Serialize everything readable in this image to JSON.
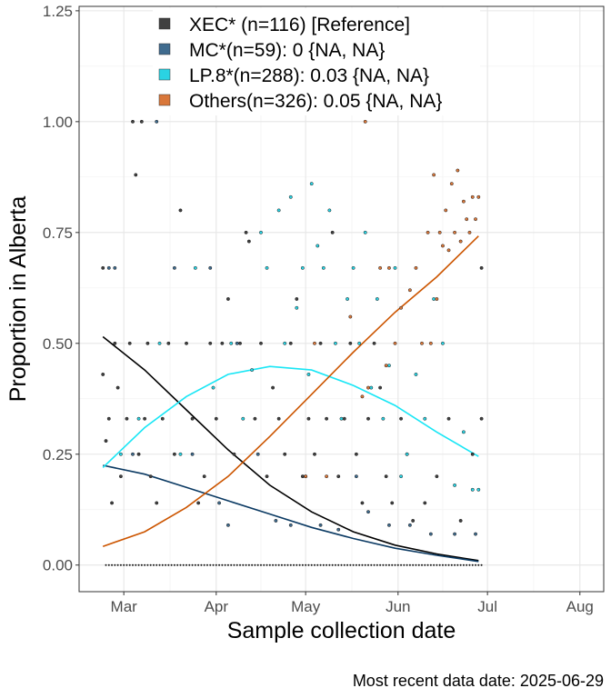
{
  "chart_data": {
    "type": "scatter",
    "xlabel": "Sample collection date",
    "ylabel": "Proportion in Alberta",
    "caption": "Most recent data date: 2025-06-29",
    "xlim": [
      "2025-02-14",
      "2025-08-09"
    ],
    "ylim": [
      -0.06,
      1.26
    ],
    "x_ticks": [
      {
        "date": "2025-03-01",
        "label": "Mar"
      },
      {
        "date": "2025-04-01",
        "label": "Apr"
      },
      {
        "date": "2025-05-01",
        "label": "May"
      },
      {
        "date": "2025-06-01",
        "label": "Jun"
      },
      {
        "date": "2025-07-01",
        "label": "Jul"
      },
      {
        "date": "2025-08-01",
        "label": "Aug"
      }
    ],
    "y_ticks": [
      {
        "value": 0,
        "label": "0.00"
      },
      {
        "value": 0.25,
        "label": "0.25"
      },
      {
        "value": 0.5,
        "label": "0.50"
      },
      {
        "value": 0.75,
        "label": "0.75"
      },
      {
        "value": 1.0,
        "label": "1.00"
      },
      {
        "value": 1.25,
        "label": "1.25"
      }
    ],
    "grid": true,
    "legend_position": "top",
    "series": [
      {
        "name": "XEC* (n=116)  [Reference]",
        "fill": "#404040",
        "line": "#000000",
        "fit": [
          [
            "2025-02-22",
            0.515
          ],
          [
            "2025-03-08",
            0.44
          ],
          [
            "2025-03-22",
            0.35
          ],
          [
            "2025-04-05",
            0.26
          ],
          [
            "2025-04-19",
            0.18
          ],
          [
            "2025-05-03",
            0.12
          ],
          [
            "2025-05-17",
            0.075
          ],
          [
            "2025-05-31",
            0.045
          ],
          [
            "2025-06-14",
            0.025
          ],
          [
            "2025-06-28",
            0.01
          ]
        ],
        "points": [
          [
            "2025-02-22",
            0.67
          ],
          [
            "2025-02-22",
            0.43
          ],
          [
            "2025-02-23",
            0.28
          ],
          [
            "2025-02-24",
            0.33
          ],
          [
            "2025-02-25",
            0.14
          ],
          [
            "2025-02-26",
            0.5
          ],
          [
            "2025-02-27",
            0.4
          ],
          [
            "2025-02-28",
            0.2
          ],
          [
            "2025-03-02",
            0.33
          ],
          [
            "2025-03-03",
            0.5
          ],
          [
            "2025-03-04",
            1.0
          ],
          [
            "2025-03-05",
            0.88
          ],
          [
            "2025-03-06",
            0.25
          ],
          [
            "2025-03-07",
            1.0
          ],
          [
            "2025-03-08",
            0.33
          ],
          [
            "2025-03-09",
            0.5
          ],
          [
            "2025-03-10",
            0.2
          ],
          [
            "2025-03-12",
            0.14
          ],
          [
            "2025-03-14",
            0.33
          ],
          [
            "2025-03-16",
            0.5
          ],
          [
            "2025-03-18",
            0.25
          ],
          [
            "2025-03-20",
            0.8
          ],
          [
            "2025-03-22",
            0.5
          ],
          [
            "2025-03-24",
            0.33
          ],
          [
            "2025-03-26",
            0.14
          ],
          [
            "2025-03-28",
            0.2
          ],
          [
            "2025-03-30",
            0.5
          ],
          [
            "2025-04-01",
            0.33
          ],
          [
            "2025-04-03",
            0.5
          ],
          [
            "2025-04-05",
            0.6
          ],
          [
            "2025-04-07",
            0.25
          ],
          [
            "2025-04-09",
            0.5
          ],
          [
            "2025-04-11",
            0.75
          ],
          [
            "2025-04-12",
            0.73
          ],
          [
            "2025-04-14",
            0.33
          ],
          [
            "2025-04-16",
            0.5
          ],
          [
            "2025-04-18",
            0.2
          ],
          [
            "2025-04-20",
            0.4
          ],
          [
            "2025-04-22",
            0.33
          ],
          [
            "2025-04-24",
            0.25
          ],
          [
            "2025-04-26",
            0.5
          ],
          [
            "2025-04-28",
            0.6
          ],
          [
            "2025-04-30",
            0.2
          ],
          [
            "2025-05-02",
            0.33
          ],
          [
            "2025-05-04",
            0.25
          ],
          [
            "2025-05-06",
            0.5
          ],
          [
            "2025-05-08",
            0.33
          ],
          [
            "2025-05-10",
            0.75
          ],
          [
            "2025-05-12",
            0.2
          ],
          [
            "2025-05-14",
            0.33
          ],
          [
            "2025-05-16",
            0.5
          ],
          [
            "2025-05-18",
            0.25
          ],
          [
            "2025-05-20",
            0.14
          ],
          [
            "2025-05-22",
            0.33
          ],
          [
            "2025-05-24",
            0.5
          ],
          [
            "2025-05-26",
            0.4
          ],
          [
            "2025-05-28",
            0.2
          ],
          [
            "2025-05-30",
            0.14
          ],
          [
            "2025-06-02",
            0.33
          ],
          [
            "2025-06-04",
            0.25
          ],
          [
            "2025-06-06",
            0.1
          ],
          [
            "2025-06-10",
            0.14
          ],
          [
            "2025-06-14",
            0.2
          ],
          [
            "2025-06-18",
            0.33
          ],
          [
            "2025-06-22",
            0.1
          ],
          [
            "2025-06-26",
            0.25
          ],
          [
            "2025-06-29",
            0.33
          ],
          [
            "2025-06-29",
            0.67
          ]
        ]
      },
      {
        "name": "MC*(n=59): 0 {NA, NA}",
        "fill": "#3f6b8e",
        "line": "#0b3a63",
        "fit": [
          [
            "2025-02-22",
            0.225
          ],
          [
            "2025-03-08",
            0.205
          ],
          [
            "2025-03-22",
            0.175
          ],
          [
            "2025-04-05",
            0.145
          ],
          [
            "2025-04-19",
            0.115
          ],
          [
            "2025-05-03",
            0.085
          ],
          [
            "2025-05-17",
            0.06
          ],
          [
            "2025-05-31",
            0.038
          ],
          [
            "2025-06-14",
            0.022
          ],
          [
            "2025-06-28",
            0.008
          ]
        ],
        "points": [
          [
            "2025-02-24",
            0.67
          ],
          [
            "2025-02-26",
            0.67
          ],
          [
            "2025-03-04",
            0.25
          ],
          [
            "2025-03-12",
            1.0
          ],
          [
            "2025-03-18",
            0.67
          ],
          [
            "2025-03-24",
            0.25
          ],
          [
            "2025-03-30",
            0.67
          ],
          [
            "2025-04-02",
            0.14
          ],
          [
            "2025-04-05",
            0.09
          ],
          [
            "2025-04-08",
            0.5
          ],
          [
            "2025-04-15",
            0.25
          ],
          [
            "2025-04-21",
            0.1
          ],
          [
            "2025-04-26",
            0.09
          ],
          [
            "2025-05-01",
            0.2
          ],
          [
            "2025-05-06",
            0.09
          ],
          [
            "2025-05-12",
            0.08
          ],
          [
            "2025-05-18",
            0.2
          ],
          [
            "2025-05-22",
            0.12
          ],
          [
            "2025-05-29",
            0.09
          ],
          [
            "2025-06-05",
            0.09
          ],
          [
            "2025-06-12",
            0.07
          ],
          [
            "2025-06-20",
            0.07
          ],
          [
            "2025-06-27",
            0.07
          ]
        ]
      },
      {
        "name": "LP.8*(n=288): 0.03 {NA, NA}",
        "fill": "#2ad3e3",
        "line": "#19e6f5",
        "fit": [
          [
            "2025-02-22",
            0.22
          ],
          [
            "2025-03-08",
            0.31
          ],
          [
            "2025-03-22",
            0.38
          ],
          [
            "2025-04-05",
            0.43
          ],
          [
            "2025-04-19",
            0.448
          ],
          [
            "2025-05-03",
            0.44
          ],
          [
            "2025-05-17",
            0.405
          ],
          [
            "2025-05-31",
            0.36
          ],
          [
            "2025-06-14",
            0.3
          ],
          [
            "2025-06-28",
            0.245
          ]
        ],
        "points": [
          [
            "2025-02-28",
            0.25
          ],
          [
            "2025-03-06",
            0.33
          ],
          [
            "2025-03-13",
            0.5
          ],
          [
            "2025-03-20",
            0.25
          ],
          [
            "2025-03-25",
            0.67
          ],
          [
            "2025-03-31",
            0.4
          ],
          [
            "2025-04-06",
            0.5
          ],
          [
            "2025-04-10",
            0.33
          ],
          [
            "2025-04-13",
            0.44
          ],
          [
            "2025-04-16",
            0.75
          ],
          [
            "2025-04-18",
            0.67
          ],
          [
            "2025-04-22",
            0.8
          ],
          [
            "2025-04-24",
            0.5
          ],
          [
            "2025-04-26",
            0.83
          ],
          [
            "2025-04-28",
            0.58
          ],
          [
            "2025-04-30",
            0.67
          ],
          [
            "2025-05-02",
            0.43
          ],
          [
            "2025-05-03",
            0.86
          ],
          [
            "2025-05-05",
            0.72
          ],
          [
            "2025-05-07",
            0.67
          ],
          [
            "2025-05-09",
            0.8
          ],
          [
            "2025-05-11",
            0.5
          ],
          [
            "2025-05-13",
            0.33
          ],
          [
            "2025-05-15",
            0.6
          ],
          [
            "2025-05-17",
            0.67
          ],
          [
            "2025-05-19",
            0.5
          ],
          [
            "2025-05-21",
            0.75
          ],
          [
            "2025-05-23",
            0.4
          ],
          [
            "2025-05-25",
            0.6
          ],
          [
            "2025-05-27",
            0.33
          ],
          [
            "2025-05-29",
            0.45
          ],
          [
            "2025-05-31",
            0.67
          ],
          [
            "2025-06-02",
            0.2
          ],
          [
            "2025-06-04",
            0.25
          ],
          [
            "2025-06-07",
            0.43
          ],
          [
            "2025-06-10",
            0.33
          ],
          [
            "2025-06-13",
            0.6
          ],
          [
            "2025-06-16",
            0.5
          ],
          [
            "2025-06-20",
            0.18
          ],
          [
            "2025-06-23",
            0.3
          ],
          [
            "2025-06-26",
            0.17
          ],
          [
            "2025-06-28",
            0.17
          ]
        ]
      },
      {
        "name": "Others(n=326): 0.05 {NA, NA}",
        "fill": "#d9773a",
        "line": "#cc5500",
        "fit": [
          [
            "2025-02-22",
            0.042
          ],
          [
            "2025-03-08",
            0.075
          ],
          [
            "2025-03-22",
            0.13
          ],
          [
            "2025-04-05",
            0.2
          ],
          [
            "2025-04-19",
            0.29
          ],
          [
            "2025-05-03",
            0.385
          ],
          [
            "2025-05-17",
            0.48
          ],
          [
            "2025-05-31",
            0.57
          ],
          [
            "2025-06-14",
            0.65
          ],
          [
            "2025-06-28",
            0.742
          ]
        ],
        "points": [
          [
            "2025-05-01",
            0.2
          ],
          [
            "2025-05-08",
            0.2
          ],
          [
            "2025-05-16",
            0.56
          ],
          [
            "2025-05-22",
            0.4
          ],
          [
            "2025-05-26",
            0.67
          ],
          [
            "2025-05-28",
            0.45
          ],
          [
            "2025-05-29",
            0.67
          ],
          [
            "2025-05-31",
            0.5
          ],
          [
            "2025-06-02",
            0.58
          ],
          [
            "2025-06-05",
            0.62
          ],
          [
            "2025-06-07",
            0.67
          ],
          [
            "2025-06-09",
            0.5
          ],
          [
            "2025-06-11",
            0.75
          ],
          [
            "2025-06-13",
            0.88
          ],
          [
            "2025-06-14",
            0.6
          ],
          [
            "2025-06-15",
            0.75
          ],
          [
            "2025-06-16",
            0.72
          ],
          [
            "2025-06-17",
            0.8
          ],
          [
            "2025-06-18",
            0.71
          ],
          [
            "2025-06-19",
            0.86
          ],
          [
            "2025-06-20",
            0.75
          ],
          [
            "2025-06-21",
            0.89
          ],
          [
            "2025-06-22",
            0.73
          ],
          [
            "2025-06-23",
            0.82
          ],
          [
            "2025-06-24",
            0.78
          ],
          [
            "2025-06-25",
            0.75
          ],
          [
            "2025-06-26",
            0.83
          ],
          [
            "2025-06-27",
            0.78
          ],
          [
            "2025-06-28",
            0.83
          ],
          [
            "2025-05-04",
            0.5
          ],
          [
            "2025-05-20",
            0.38
          ],
          [
            "2025-06-12",
            0.5
          ],
          [
            "2025-05-21",
            1.0
          ]
        ]
      }
    ]
  }
}
